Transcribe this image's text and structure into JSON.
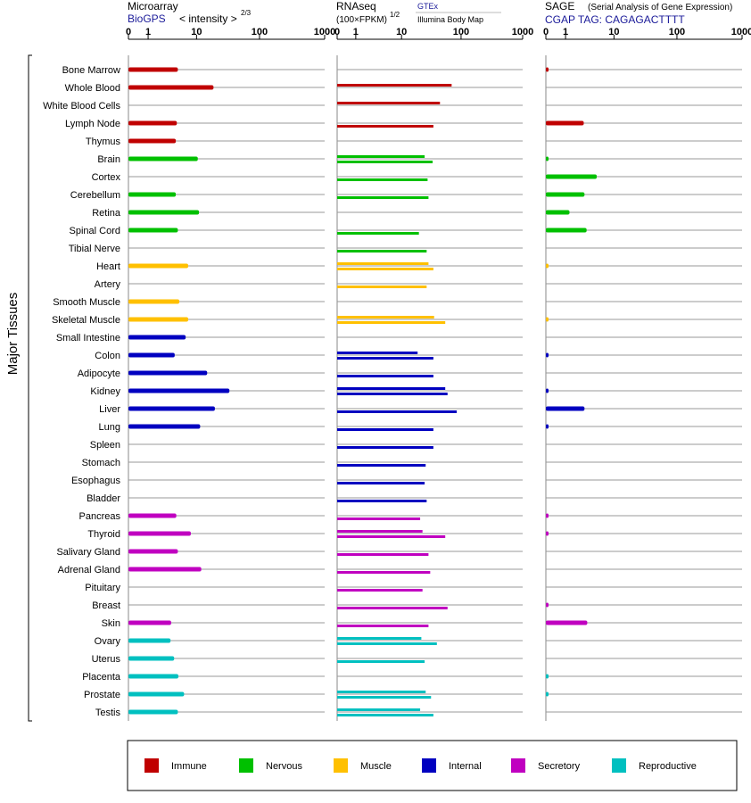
{
  "y_axis_label": "Major Tissues",
  "panels": [
    {
      "title": "Microarray",
      "subtitle": "BioGPS",
      "unit_label": "< intensity >",
      "unit_exp": "2/3"
    },
    {
      "title": "RNAseq",
      "unit_label": "(100×FPKM)",
      "unit_exp": "1/2",
      "source_1": "GTEx",
      "source_2": "Illumina Body Map"
    },
    {
      "title": "SAGE",
      "title_note": "(Serial Analysis of Gene Expression)",
      "subtitle": "CGAP TAG: CAGAGACTTTT"
    }
  ],
  "ticks": [
    "0",
    "1",
    "10",
    "100",
    "1000"
  ],
  "colors": {
    "Immune": "#c00000",
    "Nervous": "#00c000",
    "Muscle": "#ffc000",
    "Internal": "#0000c0",
    "Secretory": "#c000c0",
    "Reproductive": "#00c0c0"
  },
  "legend": [
    "Immune",
    "Nervous",
    "Muscle",
    "Internal",
    "Secretory",
    "Reproductive"
  ],
  "chart_data": {
    "type": "bar",
    "scale": "log10(1+value), axis 0-1000",
    "categories": [
      "Bone Marrow",
      "Whole Blood",
      "White Blood Cells",
      "Lymph Node",
      "Thymus",
      "Brain",
      "Cortex",
      "Cerebellum",
      "Retina",
      "Spinal Cord",
      "Tibial Nerve",
      "Heart",
      "Artery",
      "Smooth Muscle",
      "Skeletal Muscle",
      "Small Intestine",
      "Colon",
      "Adipocyte",
      "Kidney",
      "Liver",
      "Lung",
      "Spleen",
      "Stomach",
      "Esophagus",
      "Bladder",
      "Pancreas",
      "Thyroid",
      "Salivary Gland",
      "Adrenal Gland",
      "Pituitary",
      "Breast",
      "Skin",
      "Ovary",
      "Uterus",
      "Placenta",
      "Prostate",
      "Testis"
    ],
    "groups": [
      "Immune",
      "Immune",
      "Immune",
      "Immune",
      "Immune",
      "Nervous",
      "Nervous",
      "Nervous",
      "Nervous",
      "Nervous",
      "Nervous",
      "Muscle",
      "Muscle",
      "Muscle",
      "Muscle",
      "Internal",
      "Internal",
      "Internal",
      "Internal",
      "Internal",
      "Internal",
      "Internal",
      "Internal",
      "Internal",
      "Internal",
      "Secretory",
      "Secretory",
      "Secretory",
      "Secretory",
      "Secretory",
      "Secretory",
      "Secretory",
      "Reproductive",
      "Reproductive",
      "Reproductive",
      "Reproductive",
      "Reproductive"
    ],
    "series": [
      {
        "name": "Microarray",
        "values": [
          4.7,
          19,
          null,
          4.5,
          4.3,
          10.5,
          null,
          4.3,
          11,
          4.7,
          null,
          7.2,
          null,
          5,
          7.2,
          6.5,
          4.1,
          15,
          34,
          20,
          11.5,
          null,
          null,
          null,
          null,
          4.4,
          8,
          4.7,
          12,
          null,
          null,
          3.5,
          3.4,
          4,
          4.8,
          6.1,
          4.7
        ]
      },
      {
        "name": "RNAseq GTEx",
        "values": [
          null,
          70,
          45,
          null,
          null,
          25,
          null,
          null,
          null,
          null,
          null,
          29,
          null,
          null,
          36,
          null,
          19,
          null,
          55,
          null,
          null,
          null,
          null,
          null,
          null,
          null,
          23,
          null,
          null,
          null,
          null,
          null,
          22,
          null,
          null,
          26,
          21
        ]
      },
      {
        "name": "RNAseq Illumina Body Map",
        "values": [
          null,
          null,
          null,
          35,
          null,
          34,
          28,
          29,
          null,
          20,
          27,
          35,
          27,
          null,
          55,
          null,
          35,
          35,
          60,
          85,
          35,
          35,
          26,
          25,
          27,
          21,
          55,
          29,
          31,
          23,
          60,
          29,
          40,
          25,
          null,
          32,
          35
        ]
      },
      {
        "name": "SAGE",
        "values": [
          0.1,
          null,
          null,
          2.8,
          null,
          0.1,
          5,
          2.9,
          1.3,
          3.2,
          null,
          0.1,
          null,
          null,
          0.1,
          null,
          0.1,
          null,
          0.1,
          2.9,
          0.1,
          null,
          null,
          null,
          null,
          0.1,
          0.1,
          null,
          null,
          null,
          0.1,
          3.3,
          null,
          null,
          0.1,
          0.1,
          null
        ]
      }
    ],
    "xlim": [
      0,
      1000
    ]
  }
}
